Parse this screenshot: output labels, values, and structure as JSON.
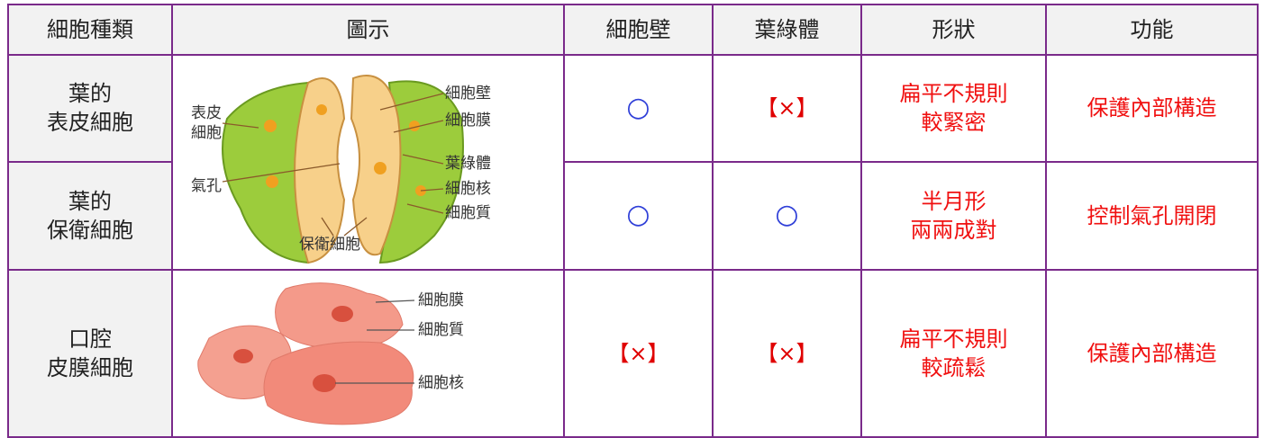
{
  "header": [
    "細胞種類",
    "圖示",
    "細胞壁",
    "葉綠體",
    "形狀",
    "功能"
  ],
  "rows": [
    {
      "cell_type": [
        "葉的",
        "表皮細胞"
      ],
      "cell_wall": "○",
      "chloroplast": "【×】",
      "shape": [
        "扁平不規則",
        "較緊密"
      ],
      "function": "保護內部構造"
    },
    {
      "cell_type": [
        "葉的",
        "保衛細胞"
      ],
      "cell_wall": "○",
      "chloroplast": "○",
      "shape": [
        "半月形",
        "兩兩成對"
      ],
      "function": "控制氣孔開閉"
    },
    {
      "cell_type": [
        "口腔",
        "皮膜細胞"
      ],
      "cell_wall": "【×】",
      "chloroplast": "【×】",
      "shape": [
        "扁平不規則",
        "較疏鬆"
      ],
      "function": "保護內部構造"
    }
  ],
  "diagrams": {
    "leaf": {
      "epidermis_label": [
        "表皮",
        "細胞"
      ],
      "stoma_label": "氣孔",
      "labels": [
        "細胞壁",
        "細胞膜",
        "葉綠體",
        "細胞核",
        "細胞質"
      ],
      "guard_label": "保衛細胞"
    },
    "cheek": {
      "labels": [
        "細胞膜",
        "細胞質",
        "細胞核"
      ]
    }
  }
}
